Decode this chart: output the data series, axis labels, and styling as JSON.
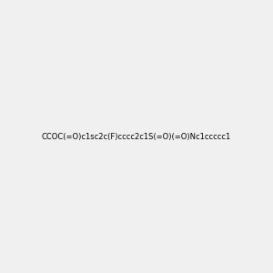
{
  "smiles": "CCOC(=O)c1sc2c(F)cccc2c1S(=O)(=O)Nc1ccccc1",
  "image_size": 300,
  "background_color": "#f0f0f0",
  "title": "",
  "figsize": [
    3.0,
    3.0
  ],
  "dpi": 100
}
